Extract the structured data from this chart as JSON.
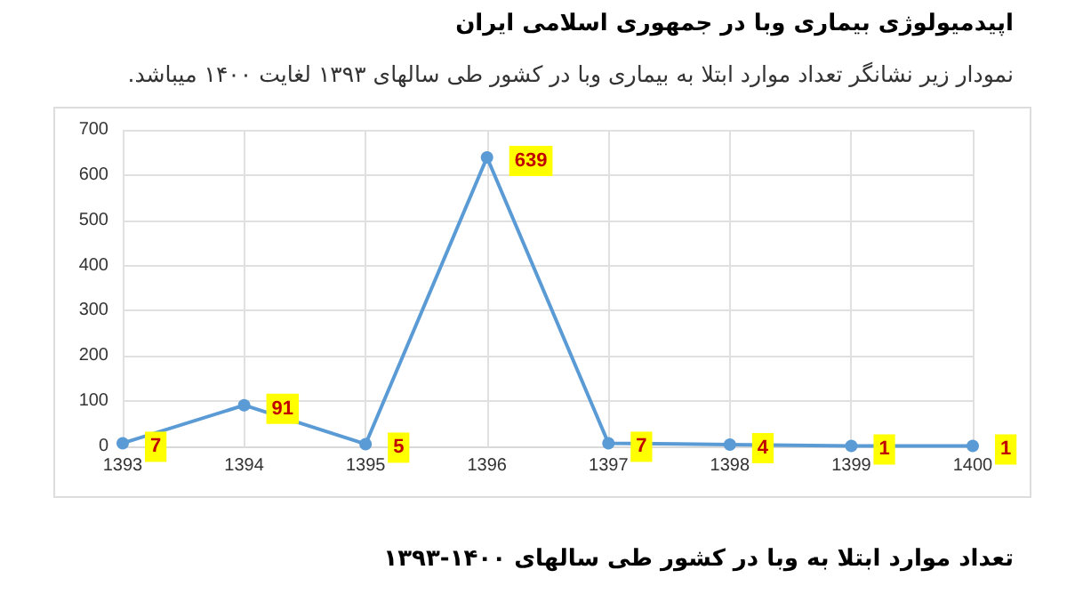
{
  "chart_data": {
    "type": "line",
    "title": "اپیدمیولوژی بیماری وبا در جمهوری اسلامی ایران",
    "subtitle": "نمودار زیر نشانگر تعداد موارد ابتلا به بیماری وبا در کشور طی سالهای ۱۳۹۳ لغایت ۱۴۰۰ میباشد.",
    "annotations": [
      "تعداد موارد ابتلا به وبا در کشور طی سالهای ۱۴۰۰-۱۳۹۳"
    ],
    "categories": [
      "1393",
      "1394",
      "1395",
      "1396",
      "1397",
      "1398",
      "1399",
      "1400"
    ],
    "series": [
      {
        "color": "#5b9bd5",
        "values": [
          7,
          91,
          5,
          639,
          7,
          4,
          1,
          1
        ]
      }
    ],
    "ylim": [
      0,
      700
    ],
    "yticks": [
      0,
      100,
      200,
      300,
      400,
      500,
      600,
      700
    ],
    "grid": true,
    "data_labels": true,
    "marker": "circle",
    "line_style": "solid"
  }
}
